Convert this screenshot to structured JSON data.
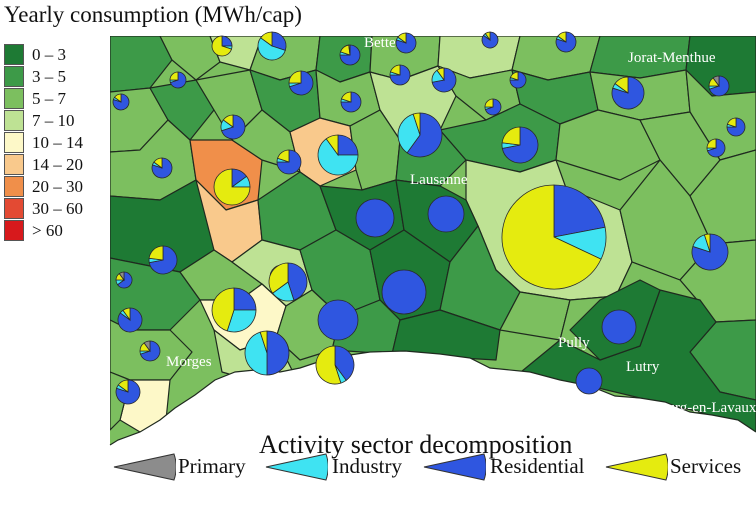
{
  "title": "Yearly consumption (MWh/cap)",
  "legend": [
    {
      "label": "0 – 3",
      "color": "#1e7a34"
    },
    {
      "label": "3 – 5",
      "color": "#3d9a48"
    },
    {
      "label": "5 – 7",
      "color": "#7cbf5f"
    },
    {
      "label": "7 – 10",
      "color": "#bee294"
    },
    {
      "label": "10 – 14",
      "color": "#fdf8c8"
    },
    {
      "label": "14 – 20",
      "color": "#f9c98c"
    },
    {
      "label": "20 – 30",
      "color": "#f08f4a"
    },
    {
      "label": "30 – 60",
      "color": "#e34a33"
    },
    {
      "label": "> 60",
      "color": "#d7191c"
    }
  ],
  "places": [
    "Bettens",
    "Jorat-Menthue",
    "Lausanne",
    "Morges",
    "Pully",
    "Lutry",
    "Bourg-en-Lavaux"
  ],
  "sector_legend": {
    "title": "Activity sector decomposition",
    "items": [
      {
        "label": "Primary",
        "color": "#8c8c8c"
      },
      {
        "label": "Industry",
        "color": "#3fe3f2"
      },
      {
        "label": "Residential",
        "color": "#2f56e0"
      },
      {
        "label": "Services",
        "color": "#e5eb0f"
      }
    ]
  }
}
